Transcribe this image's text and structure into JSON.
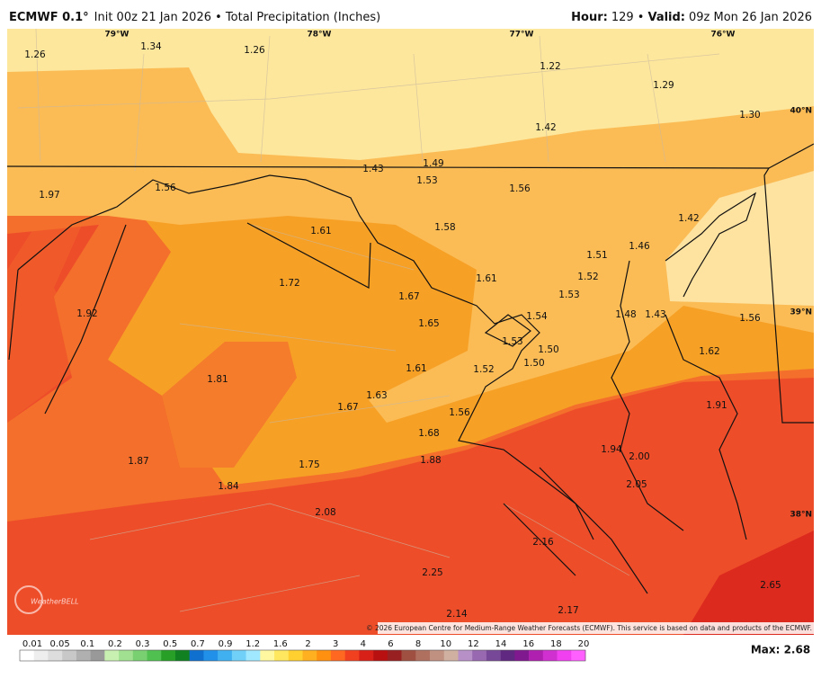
{
  "header": {
    "model": "ECMWF 0.1°",
    "description": "Init 00z 21 Jan 2026 • Total Precipitation (Inches)",
    "hour_label": "Hour:",
    "hour_value": "129 •",
    "valid_label": "Valid:",
    "valid_value": "09z Mon 26 Jan 2026"
  },
  "map": {
    "longitude_labels": [
      "79°W",
      "78°W",
      "77°W",
      "76°W"
    ],
    "latitude_labels": [
      "40°N",
      "39°N",
      "38°N"
    ],
    "point_values": [
      "1.26",
      "1.34",
      "1.26",
      "1.22",
      "1.29",
      "1.30",
      "1.42",
      "1.49",
      "1.43",
      "1.53",
      "1.56",
      "1.97",
      "1.56",
      "1.42",
      "1.58",
      "1.61",
      "1.46",
      "1.51",
      "1.52",
      "1.61",
      "1.72",
      "1.67",
      "1.53",
      "1.92",
      "1.54",
      "1.48",
      "1.43",
      "1.56",
      "1.65",
      "1.53",
      "1.50",
      "1.62",
      "1.50",
      "1.61",
      "1.52",
      "1.81",
      "1.63",
      "1.67",
      "1.91",
      "1.56",
      "1.68",
      "1.94",
      "2.00",
      "1.87",
      "1.88",
      "1.75",
      "2.05",
      "1.84",
      "2.08",
      "2.16",
      "2.25",
      "2.65",
      "2.14",
      "2.17"
    ],
    "copyright": "© 2026 European Centre for Medium-Range Weather Forecasts (ECMWF). This service is based on data and products of the ECMWF.",
    "logo": "WeatherBELL"
  },
  "colorbar": {
    "labels": [
      "0.01",
      "0.05",
      "0.1",
      "0.2",
      "0.3",
      "0.5",
      "0.7",
      "0.9",
      "1.2",
      "1.6",
      "2",
      "3",
      "4",
      "6",
      "8",
      "10",
      "12",
      "14",
      "16",
      "18",
      "20"
    ]
  },
  "max_label": "Max: 2.68"
}
